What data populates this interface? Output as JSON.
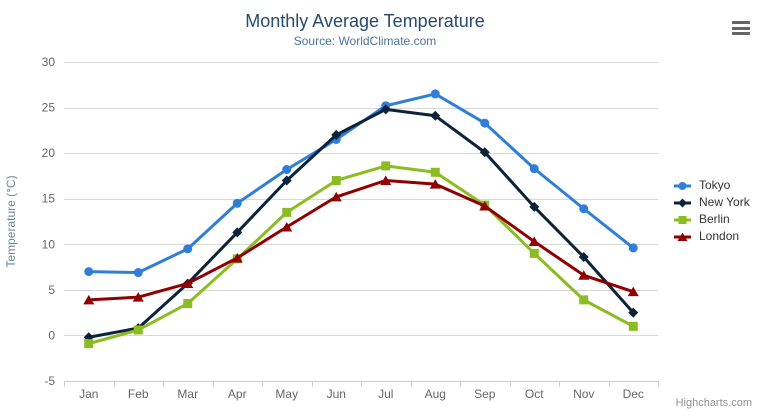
{
  "chart_data": {
    "type": "line",
    "title": "Monthly Average Temperature",
    "subtitle": "Source: WorldClimate.com",
    "categories": [
      "Jan",
      "Feb",
      "Mar",
      "Apr",
      "May",
      "Jun",
      "Jul",
      "Aug",
      "Sep",
      "Oct",
      "Nov",
      "Dec"
    ],
    "series": [
      {
        "name": "Tokyo",
        "color": "#2f7ed8",
        "marker": "circle",
        "values": [
          7.0,
          6.9,
          9.5,
          14.5,
          18.2,
          21.5,
          25.2,
          26.5,
          23.3,
          18.3,
          13.9,
          9.6
        ]
      },
      {
        "name": "New York",
        "color": "#0d233a",
        "marker": "diamond",
        "values": [
          -0.2,
          0.8,
          5.7,
          11.3,
          17.0,
          22.0,
          24.8,
          24.1,
          20.1,
          14.1,
          8.6,
          2.5
        ]
      },
      {
        "name": "Berlin",
        "color": "#8bbc21",
        "marker": "square",
        "values": [
          -0.9,
          0.6,
          3.5,
          8.4,
          13.5,
          17.0,
          18.6,
          17.9,
          14.3,
          9.0,
          3.9,
          1.0
        ]
      },
      {
        "name": "London",
        "color": "#910000",
        "marker": "triangle",
        "values": [
          3.9,
          4.2,
          5.7,
          8.5,
          11.9,
          15.2,
          17.0,
          16.6,
          14.2,
          10.3,
          6.6,
          4.8
        ]
      }
    ],
    "xlabel": "",
    "ylabel": "Temperature (°C)",
    "ylim": [
      -5,
      30
    ],
    "ytick_step": 5,
    "grid": true,
    "legend_position": "right",
    "colors": {
      "title": "#274b6d",
      "subtitle": "#4d759e",
      "axis_label": "#666666",
      "axis_title": "#6d869f",
      "gridline": "#d8d8d8",
      "axis_line": "#c0d0e0",
      "legend_text": "#333333"
    }
  },
  "export_menu": {
    "icon": "hamburger-icon"
  },
  "credits": "Highcharts.com"
}
